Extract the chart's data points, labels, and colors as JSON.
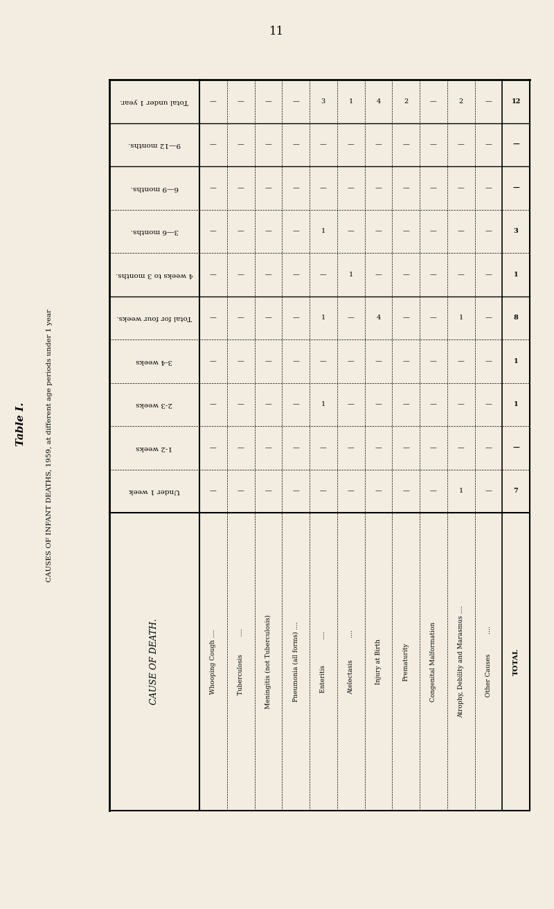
{
  "page_number": "11",
  "table_title": "Table I.",
  "table_subtitle": "CAUSES OF INFANT DEATHS, 1959, at different age periods under 1 year",
  "background_color": "#f2ede0",
  "cause_header": "CAUSE OF DEATH.",
  "row_headers": [
    "Total under 1 year.",
    "9—12 months.",
    "6—9 months.",
    "3—6 months.",
    "4 weeks to 3 months.",
    "Total for four weeks.",
    "3-4 weeks",
    "2-3 weeks",
    "1-2 weeks",
    "Under 1 week"
  ],
  "causes": [
    "Whooping Cough ....",
    "Tuberculosis         ....",
    "Meningitis (not Tuberculosis)",
    "Pneumonia (all forms) ....",
    "Enteritis             ....",
    "Atelectasis           ....",
    "Injury at Birth",
    "Prematurity",
    "Congenital Malformation",
    "Atrophy, Debility and Marasmus ....",
    "Other Causes          ....",
    "TOTAL"
  ],
  "row_totals": [
    "12",
    "—",
    "—",
    "3",
    "1",
    "8",
    "1",
    "1",
    "—",
    "7"
  ],
  "display_data": [
    [
      "12",
      "—",
      "—",
      "3",
      "1",
      "8",
      "1",
      "1",
      "—",
      "7"
    ],
    [
      "—",
      "—",
      "—",
      "—",
      "—",
      "—",
      "—",
      "—",
      "—",
      "—"
    ],
    [
      "—",
      "—",
      "—",
      "—",
      "—",
      "—",
      "—",
      "—",
      "—",
      "—"
    ],
    [
      "3",
      "—",
      "—",
      "—",
      "—",
      "—",
      "—",
      "1",
      "—",
      "—"
    ],
    [
      "1",
      "—",
      "—",
      "—",
      "—",
      "—",
      "—",
      "—",
      "—",
      "—"
    ],
    [
      "8",
      "—",
      "—",
      "—",
      "—",
      "4",
      "1",
      "—",
      "—",
      "1"
    ],
    [
      "1",
      "—",
      "—",
      "—",
      "—",
      "—",
      "—",
      "—",
      "—",
      "1"
    ],
    [
      "1",
      "—",
      "—",
      "—",
      "—",
      "—",
      "—",
      "1",
      "—",
      "—"
    ],
    [
      "—",
      "—",
      "—",
      "—",
      "—",
      "—",
      "—",
      "—",
      "—",
      "—"
    ],
    [
      "7",
      "—",
      "—",
      "—",
      "—",
      "4",
      "1",
      "—",
      "—",
      "1"
    ]
  ],
  "col_data": [
    [
      "—",
      "—",
      "—",
      "—",
      "—",
      "—",
      "—",
      "—",
      "—",
      "12"
    ],
    [
      "—",
      "—",
      "—",
      "—",
      "—",
      "—",
      "—",
      "—",
      "—",
      "—"
    ],
    [
      "—",
      "—",
      "—",
      "—",
      "—",
      "—",
      "—",
      "—",
      "—",
      "—"
    ],
    [
      "—",
      "—",
      "—",
      "1",
      "—",
      "—",
      "—",
      "—",
      "—",
      "3"
    ],
    [
      "—",
      "—",
      "—",
      "—",
      "—",
      "—",
      "—",
      "—",
      "—",
      "1"
    ],
    [
      "—",
      "—",
      "—",
      "1",
      "—",
      "4",
      "1",
      "—",
      "1",
      "8"
    ],
    [
      "—",
      "—",
      "—",
      "—",
      "—",
      "—",
      "—",
      "—",
      "—",
      "1"
    ],
    [
      "—",
      "—",
      "1",
      "—",
      "—",
      "—",
      "—",
      "—",
      "—",
      "1"
    ],
    [
      "—",
      "—",
      "—",
      "—",
      "—",
      "—",
      "—",
      "—",
      "—",
      "—"
    ],
    [
      "—",
      "—",
      "—",
      "1",
      "—",
      "4",
      "1",
      "—",
      "1",
      "7"
    ],
    [
      "—",
      "—",
      "—",
      "—",
      "—",
      "—",
      "—",
      "—",
      "—",
      "—"
    ],
    [
      "—",
      "—",
      "—",
      "3",
      "1",
      "4",
      "2",
      "—",
      "2",
      "12"
    ]
  ]
}
